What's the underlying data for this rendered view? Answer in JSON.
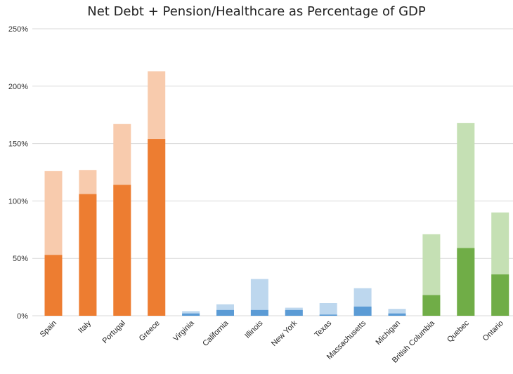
{
  "chart_data": {
    "type": "bar",
    "stacked_overlay": true,
    "title": "Net Debt + Pension/Healthcare as Percentage of GDP",
    "xlabel": "",
    "ylabel": "",
    "ylim": [
      0,
      250
    ],
    "yticks": [
      0,
      50,
      100,
      150,
      200,
      250
    ],
    "ytick_labels": [
      "0%",
      "50%",
      "100%",
      "150%",
      "200%",
      "250%"
    ],
    "grid": true,
    "categories": [
      "Spain",
      "Italy",
      "Portugal",
      "Greece",
      "Virginia",
      "California",
      "Illinois",
      "New York",
      "Texas",
      "Massachusetts",
      "Michigan",
      "British Columbia",
      "Quebec",
      "Ontario"
    ],
    "net_debt": [
      53,
      106,
      114,
      154,
      2,
      5,
      5,
      5,
      1,
      8,
      2,
      18,
      59,
      36
    ],
    "total_with_pension_healthcare": [
      126,
      127,
      167,
      213,
      4,
      10,
      32,
      7,
      11,
      24,
      6,
      71,
      168,
      90
    ],
    "category_group": [
      "europe",
      "europe",
      "europe",
      "europe",
      "us",
      "us",
      "us",
      "us",
      "us",
      "us",
      "us",
      "canada",
      "canada",
      "canada"
    ],
    "colors": {
      "europe": {
        "dark": "#ED7D31",
        "light": "#F8CBAD"
      },
      "us": {
        "dark": "#5B9BD5",
        "light": "#BDD7EE"
      },
      "canada": {
        "dark": "#70AD47",
        "light": "#C5E0B4"
      },
      "grid": "#D9D9D9"
    }
  }
}
